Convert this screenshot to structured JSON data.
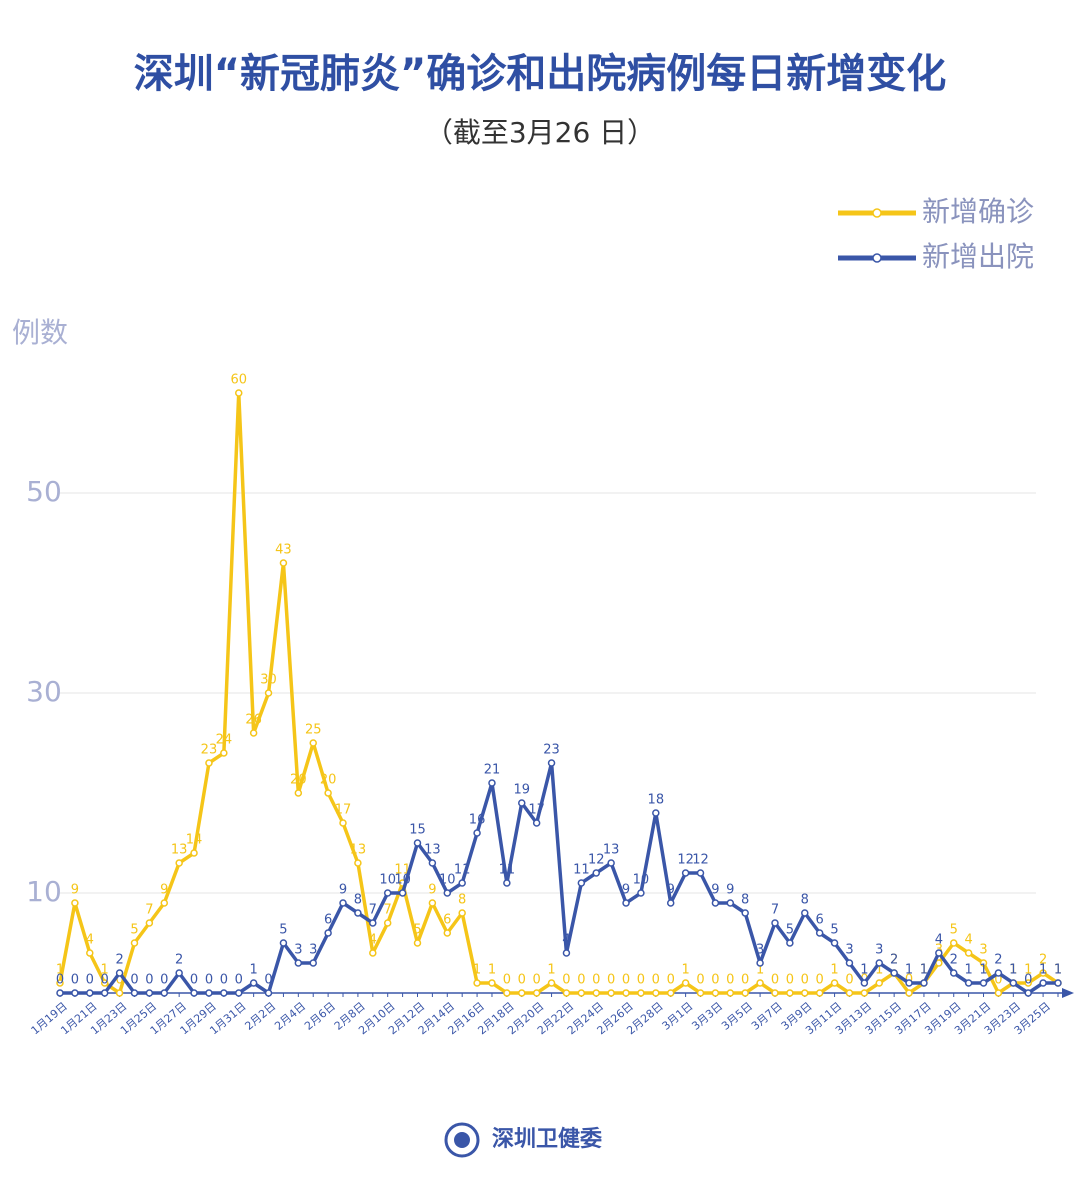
{
  "chart_data": {
    "type": "line",
    "title": "深圳“新冠肺炎”确诊和出院病例每日新增变化",
    "subtitle": "（截至3月26 日）",
    "y_label": "例数",
    "source": "深圳卫健委",
    "categories": [
      "1月19日",
      null,
      "1月21日",
      null,
      "1月23日",
      null,
      "1月25日",
      null,
      "1月27日",
      null,
      "1月29日",
      null,
      "1月31日",
      null,
      "2月2日",
      null,
      "2月4日",
      null,
      "2月6日",
      null,
      "2月8日",
      null,
      "2月10日",
      null,
      "2月12日",
      null,
      "2月14日",
      null,
      "2月16日",
      null,
      "2月18日",
      null,
      "2月20日",
      null,
      "2月22日",
      null,
      "2月24日",
      null,
      "2月26日",
      null,
      "2月28日",
      null,
      "3月1日",
      null,
      "3月3日",
      null,
      "3月5日",
      null,
      "3月7日",
      null,
      "3月9日",
      null,
      "3月11日",
      null,
      "3月13日",
      null,
      "3月15日",
      null,
      "3月17日",
      null,
      "3月19日",
      null,
      "3月21日",
      null,
      "3月23日",
      null,
      "3月25日",
      null
    ],
    "series": [
      {
        "name": "新增确诊",
        "color": "#f5c518",
        "values": [
          1,
          9,
          4,
          1,
          0,
          5,
          7,
          9,
          13,
          14,
          23,
          24,
          60,
          26,
          30,
          43,
          20,
          25,
          20,
          17,
          13,
          4,
          7,
          11,
          5,
          9,
          6,
          8,
          1,
          1,
          0,
          0,
          0,
          1,
          0,
          0,
          0,
          0,
          0,
          0,
          0,
          0,
          1,
          0,
          0,
          0,
          0,
          1,
          0,
          0,
          0,
          0,
          1,
          0,
          0,
          1,
          2,
          0,
          1,
          3,
          5,
          4,
          3,
          0,
          1,
          1,
          2,
          1
        ]
      },
      {
        "name": "新增出院",
        "color": "#3a56a8",
        "values": [
          0,
          0,
          0,
          0,
          2,
          0,
          0,
          0,
          2,
          0,
          0,
          0,
          0,
          1,
          0,
          5,
          3,
          3,
          6,
          9,
          8,
          7,
          10,
          10,
          15,
          13,
          10,
          11,
          16,
          21,
          11,
          19,
          17,
          23,
          4,
          11,
          12,
          13,
          9,
          10,
          18,
          9,
          12,
          12,
          9,
          9,
          8,
          3,
          7,
          5,
          8,
          6,
          5,
          3,
          1,
          3,
          2,
          1,
          1,
          4,
          2,
          1,
          1,
          2,
          1,
          0,
          1,
          1
        ]
      }
    ],
    "ylim": [
      0,
      60
    ],
    "yticks": [
      10,
      30,
      50
    ],
    "grid": true,
    "legend": "top-right"
  }
}
